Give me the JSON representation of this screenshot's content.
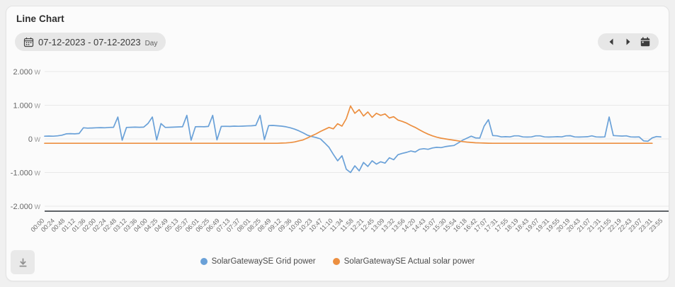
{
  "page": {
    "title": "Line Chart"
  },
  "toolbar": {
    "date_range": "07-12-2023 - 07-12-2023",
    "granularity": "Day",
    "calendar_icon": "calendar-icon",
    "prev_icon": "chevron-left-icon",
    "next_icon": "chevron-right-icon",
    "calendar_picker_icon": "calendar-solid-icon"
  },
  "footer": {
    "download_icon": "download-icon"
  },
  "colors": {
    "grid_power": "#6aa1d8",
    "solar_power": "#ec8f40",
    "axis": "#5f6368",
    "gridline": "#e8e8e8",
    "pill_bg": "#e7e7e7",
    "card_bg": "#fbfbfb",
    "page_bg": "#f0f0f0"
  },
  "chart_data": {
    "type": "line",
    "title": "Line Chart",
    "unit": "W",
    "ylim": [
      -2000,
      2000
    ],
    "grid": "horizontal",
    "legend_position": "bottom",
    "y_tick_values": [
      2000,
      1000,
      0,
      -1000,
      -2000
    ],
    "y_tick_labels": [
      "2.000",
      "1.000",
      "0",
      "-1.000",
      "-2.000"
    ],
    "x_tick_labels": [
      "00:00",
      "00:24",
      "00:48",
      "01:12",
      "01:36",
      "02:00",
      "02:24",
      "02:48",
      "03:12",
      "03:36",
      "04:00",
      "04:25",
      "04:49",
      "05:13",
      "05:37",
      "06:01",
      "06:25",
      "06:49",
      "07:13",
      "07:37",
      "08:01",
      "08:25",
      "08:49",
      "09:12",
      "09:36",
      "10:00",
      "10:23",
      "10:47",
      "11:10",
      "11:34",
      "11:58",
      "12:21",
      "12:45",
      "13:09",
      "13:32",
      "13:56",
      "14:20",
      "14:43",
      "15:07",
      "15:30",
      "15:54",
      "16:18",
      "16:42",
      "17:07",
      "17:31",
      "17:55",
      "18:19",
      "18:43",
      "19:07",
      "19:31",
      "19:55",
      "20:19",
      "20:43",
      "21:07",
      "21:31",
      "21:55",
      "22:19",
      "22:43",
      "23:07",
      "23:31",
      "23:55"
    ],
    "time_start": "00:00",
    "sample_interval_min": 10,
    "series": [
      {
        "name": "SolarGatewaySE Grid power",
        "color": "#6aa1d8",
        "values": [
          80,
          85,
          80,
          90,
          110,
          150,
          155,
          150,
          160,
          330,
          320,
          325,
          330,
          335,
          330,
          340,
          345,
          650,
          -40,
          340,
          345,
          350,
          345,
          350,
          460,
          650,
          -30,
          455,
          340,
          345,
          350,
          355,
          360,
          700,
          -40,
          360,
          365,
          360,
          370,
          700,
          -30,
          370,
          375,
          370,
          380,
          375,
          380,
          385,
          390,
          400,
          700,
          -20,
          395,
          400,
          390,
          380,
          360,
          330,
          290,
          240,
          180,
          110,
          70,
          40,
          0,
          -120,
          -250,
          -460,
          -650,
          -500,
          -900,
          -1000,
          -800,
          -950,
          -700,
          -820,
          -650,
          -750,
          -680,
          -720,
          -560,
          -620,
          -470,
          -430,
          -400,
          -360,
          -390,
          -310,
          -290,
          -310,
          -270,
          -250,
          -260,
          -230,
          -210,
          -195,
          -120,
          -40,
          20,
          80,
          30,
          25,
          380,
          570,
          100,
          90,
          60,
          65,
          60,
          90,
          90,
          60,
          55,
          60,
          90,
          90,
          60,
          55,
          60,
          65,
          60,
          90,
          95,
          60,
          55,
          60,
          65,
          90,
          60,
          55,
          60,
          650,
          100,
          90,
          85,
          90,
          60,
          55,
          60,
          -60,
          -70,
          30,
          70,
          60
        ]
      },
      {
        "name": "SolarGatewaySE Actual solar power",
        "color": "#ec8f40",
        "values": [
          -130,
          -130,
          -130,
          -130,
          -130,
          -130,
          -130,
          -130,
          -130,
          -130,
          -130,
          -130,
          -130,
          -130,
          -130,
          -130,
          -130,
          -130,
          -130,
          -130,
          -130,
          -130,
          -130,
          -130,
          -130,
          -130,
          -130,
          -130,
          -130,
          -130,
          -130,
          -130,
          -130,
          -130,
          -130,
          -130,
          -130,
          -130,
          -130,
          -130,
          -130,
          -130,
          -130,
          -130,
          -130,
          -130,
          -130,
          -130,
          -130,
          -130,
          -130,
          -130,
          -130,
          -130,
          -130,
          -125,
          -120,
          -110,
          -90,
          -60,
          -30,
          30,
          90,
          150,
          220,
          280,
          340,
          300,
          450,
          380,
          600,
          980,
          760,
          870,
          680,
          800,
          640,
          760,
          700,
          740,
          620,
          660,
          560,
          520,
          470,
          400,
          340,
          270,
          200,
          140,
          90,
          50,
          20,
          0,
          -20,
          -40,
          -60,
          -80,
          -95,
          -105,
          -115,
          -120,
          -125,
          -128,
          -130,
          -130,
          -130,
          -130,
          -130,
          -130,
          -130,
          -130,
          -130,
          -130,
          -130,
          -130,
          -130,
          -130,
          -130,
          -130,
          -130,
          -130,
          -130,
          -130,
          -130,
          -130,
          -130,
          -130,
          -130,
          -130,
          -130,
          -130,
          -130,
          -130,
          -130,
          -130,
          -130,
          -130,
          -130,
          -130,
          -130,
          -130
        ]
      }
    ]
  }
}
